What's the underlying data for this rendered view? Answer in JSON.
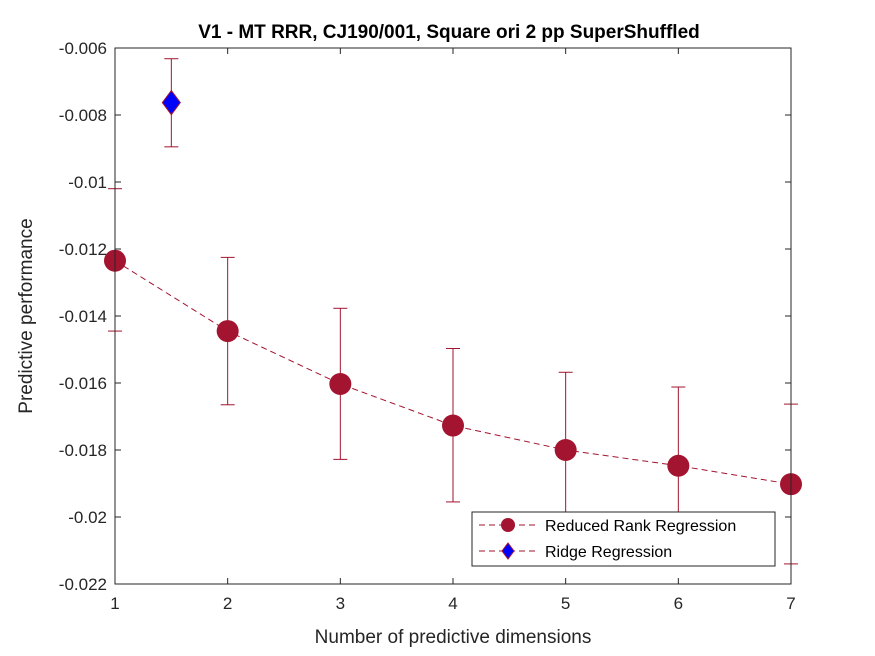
{
  "chart_data": {
    "type": "scatter",
    "title": "V1 - MT RRR, CJ190/001, Square ori 2 pp  SuperShuffled",
    "xlabel": "Number of predictive dimensions",
    "ylabel": "Predictive performance",
    "xlim": [
      1,
      7
    ],
    "ylim": [
      -0.022,
      -0.006
    ],
    "x_ticks": [
      1,
      2,
      3,
      4,
      5,
      6,
      7
    ],
    "x_tick_labels": [
      "1",
      "2",
      "3",
      "4",
      "5",
      "6",
      "7"
    ],
    "y_ticks": [
      -0.022,
      -0.02,
      -0.018,
      -0.016,
      -0.014,
      -0.012,
      -0.01,
      -0.008,
      -0.006
    ],
    "y_tick_labels": [
      "-0.022",
      "-0.02",
      "-0.018",
      "-0.016",
      "-0.014",
      "-0.012",
      "-0.01",
      "-0.008",
      "-0.006"
    ],
    "grid": false,
    "box": true,
    "legend_position": "bottom-right",
    "series": [
      {
        "name": "Reduced Rank Regression",
        "color": "#A2142F",
        "marker": "circle",
        "line_style": "dashed",
        "x": [
          1,
          2,
          3,
          4,
          5,
          6,
          7
        ],
        "y": [
          -0.01235,
          -0.01445,
          -0.01603,
          -0.01727,
          -0.018,
          -0.01847,
          -0.01902
        ],
        "err_low": [
          -0.01445,
          -0.01665,
          -0.01828,
          -0.01955,
          -0.0202,
          -0.0208,
          -0.0214
        ],
        "err_high": [
          -0.0102,
          -0.01225,
          -0.01377,
          -0.01497,
          -0.01568,
          -0.01612,
          -0.01663
        ]
      },
      {
        "name": "Ridge Regression",
        "color": "#0000FF",
        "edge_color": "#A2142F",
        "marker": "diamond",
        "line_style": "dashed",
        "x": [
          1.5
        ],
        "y": [
          -0.00763
        ],
        "err_low": [
          -0.00895
        ],
        "err_high": [
          -0.00632
        ]
      }
    ]
  }
}
